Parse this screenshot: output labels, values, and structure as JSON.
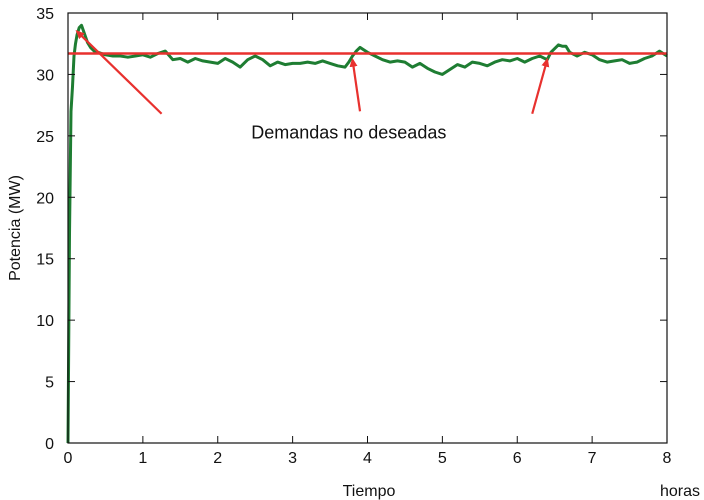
{
  "chart_data": {
    "type": "line",
    "title": "",
    "xlabel": "Tiempo",
    "xunit": "horas",
    "ylabel": "Potencia (MW)",
    "xlim": [
      0,
      8
    ],
    "ylim": [
      0,
      35
    ],
    "xticks": [
      0,
      1,
      2,
      3,
      4,
      5,
      6,
      7,
      8
    ],
    "yticks": [
      0,
      5,
      10,
      15,
      20,
      25,
      30,
      35
    ],
    "grid": false,
    "series": [
      {
        "color": "#1e7d32",
        "x": [
          0,
          0.02,
          0.04,
          0.06,
          0.08,
          0.1,
          0.12,
          0.15,
          0.18,
          0.22,
          0.26,
          0.3,
          0.35,
          0.4,
          0.5,
          0.6,
          0.7,
          0.8,
          0.9,
          1.0,
          1.1,
          1.2,
          1.3,
          1.4,
          1.5,
          1.6,
          1.7,
          1.8,
          1.9,
          2.0,
          2.1,
          2.2,
          2.3,
          2.4,
          2.5,
          2.6,
          2.7,
          2.8,
          2.9,
          3.0,
          3.1,
          3.2,
          3.3,
          3.4,
          3.5,
          3.6,
          3.7,
          3.75,
          3.8,
          3.85,
          3.9,
          3.95,
          4.0,
          4.1,
          4.2,
          4.3,
          4.4,
          4.5,
          4.6,
          4.7,
          4.8,
          4.9,
          5.0,
          5.1,
          5.2,
          5.3,
          5.4,
          5.5,
          5.6,
          5.7,
          5.8,
          5.9,
          6.0,
          6.1,
          6.2,
          6.3,
          6.4,
          6.45,
          6.5,
          6.55,
          6.6,
          6.65,
          6.7,
          6.8,
          6.9,
          7.0,
          7.1,
          7.2,
          7.3,
          7.4,
          7.5,
          7.6,
          7.7,
          7.8,
          7.9,
          8.0
        ],
        "y": [
          0,
          17,
          27,
          29,
          31.5,
          32.5,
          33.2,
          33.8,
          34.0,
          33.3,
          32.6,
          32.2,
          31.9,
          31.8,
          31.6,
          31.5,
          31.5,
          31.4,
          31.5,
          31.6,
          31.4,
          31.7,
          31.9,
          31.2,
          31.3,
          31.0,
          31.3,
          31.1,
          31.0,
          30.9,
          31.3,
          31.0,
          30.6,
          31.2,
          31.5,
          31.2,
          30.7,
          31.0,
          30.8,
          30.9,
          30.9,
          31.0,
          30.9,
          31.1,
          30.9,
          30.7,
          30.6,
          31.0,
          31.5,
          31.9,
          32.2,
          32.0,
          31.8,
          31.5,
          31.2,
          31.0,
          31.1,
          31.0,
          30.6,
          30.9,
          30.5,
          30.2,
          30.0,
          30.4,
          30.8,
          30.6,
          31.0,
          30.9,
          30.7,
          31.0,
          31.2,
          31.1,
          31.3,
          31.0,
          31.3,
          31.5,
          31.2,
          31.8,
          32.1,
          32.4,
          32.3,
          32.3,
          31.8,
          31.5,
          31.8,
          31.6,
          31.2,
          31.0,
          31.1,
          31.2,
          30.9,
          31.0,
          31.3,
          31.5,
          31.9,
          31.5
        ]
      },
      {
        "color": "#e8312e",
        "x": [
          0,
          8
        ],
        "y": [
          31.7,
          31.7
        ]
      }
    ],
    "annotations": [
      {
        "text": "Demandas no deseadas",
        "x": 3.75,
        "y": 24.8
      }
    ],
    "arrows": [
      {
        "from": [
          1.25,
          26.8
        ],
        "to": [
          0.12,
          33.5
        ]
      },
      {
        "from": [
          3.9,
          27.0
        ],
        "to": [
          3.8,
          31.2
        ]
      },
      {
        "from": [
          6.2,
          26.8
        ],
        "to": [
          6.4,
          31.2
        ]
      }
    ]
  }
}
